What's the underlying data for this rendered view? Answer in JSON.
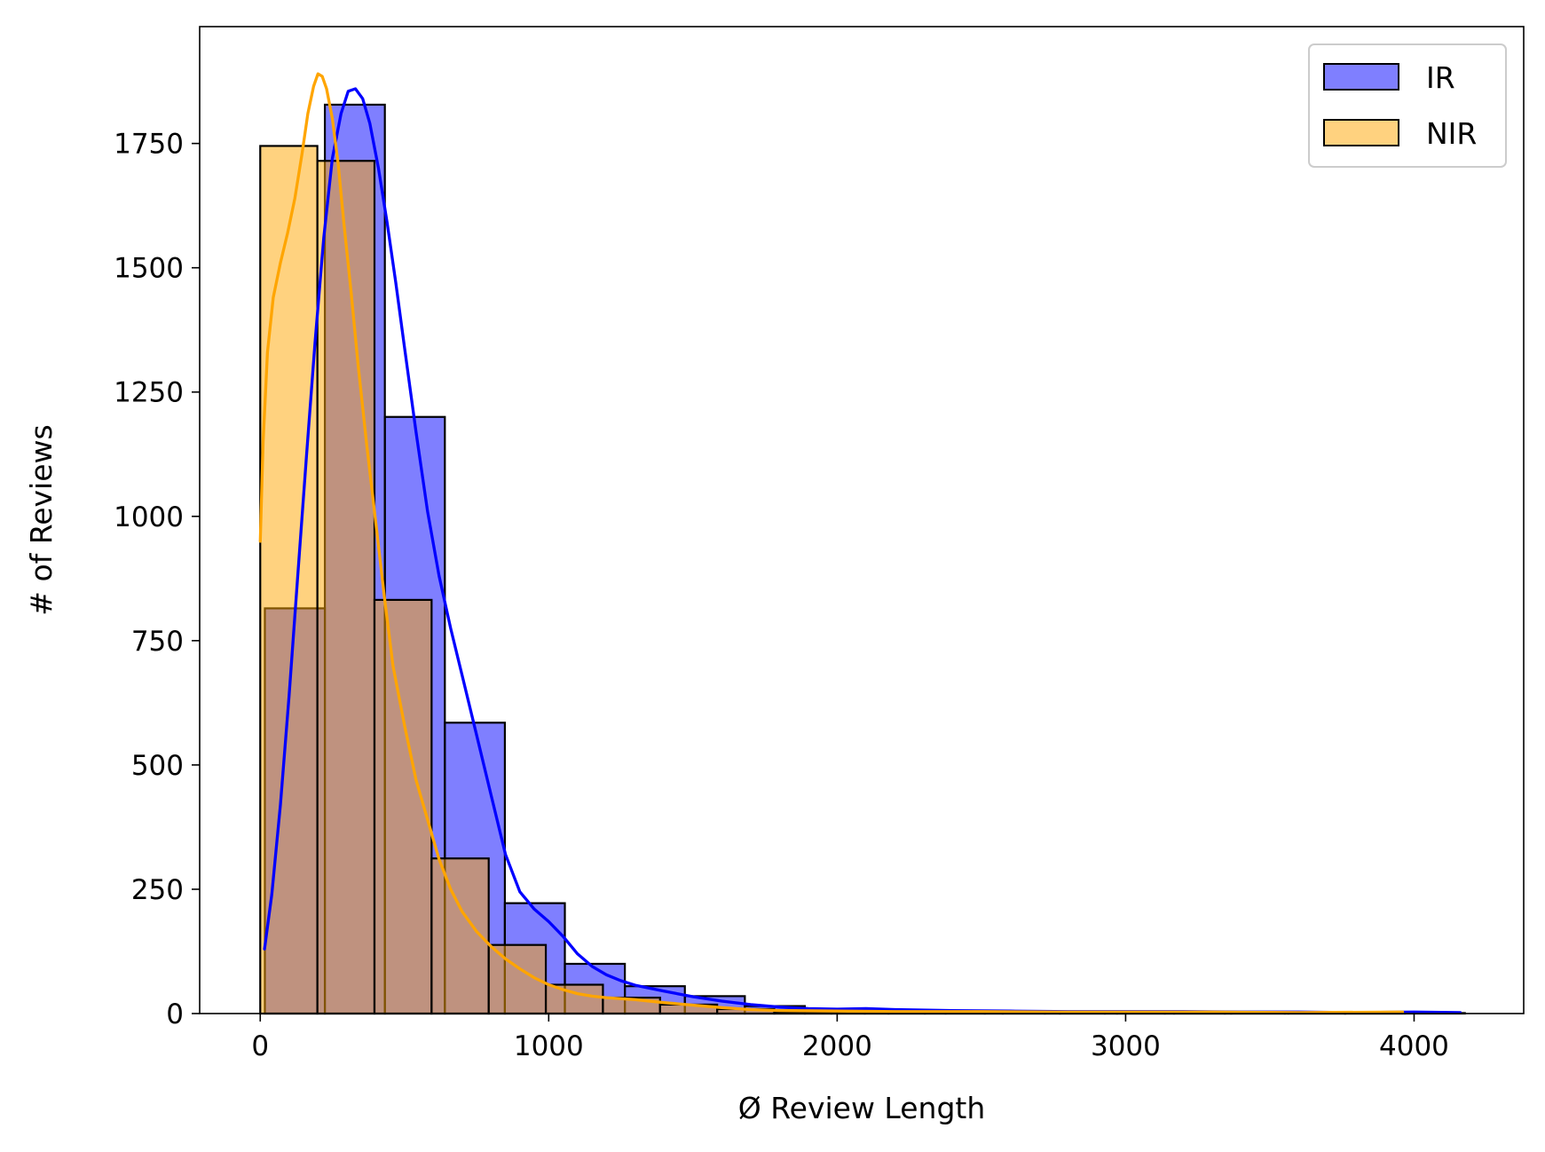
{
  "chart_data": {
    "type": "histogram",
    "title": "",
    "xlabel": "Ø Review Length",
    "ylabel": "# of Reviews",
    "xlim": [
      -210,
      4380
    ],
    "ylim": [
      0,
      1985
    ],
    "x_ticks": [
      0,
      1000,
      2000,
      3000,
      4000
    ],
    "y_ticks": [
      0,
      250,
      500,
      750,
      1000,
      1250,
      1500,
      1750
    ],
    "grid": false,
    "legend": {
      "position": "top-right"
    },
    "colors": {
      "IR_fill": "#0000ff",
      "IR_fill_opacity": 0.5,
      "IR_line": "#0000ff",
      "NIR_fill": "#ffa500",
      "NIR_fill_opacity": 0.5,
      "NIR_line": "#ffa500",
      "edge": "#000000"
    },
    "series": [
      {
        "name": "IR",
        "bins": [
          [
            16,
            224,
            815
          ],
          [
            224,
            432,
            1828
          ],
          [
            432,
            640,
            1200
          ],
          [
            640,
            848,
            585
          ],
          [
            848,
            1056,
            222
          ],
          [
            1056,
            1264,
            100
          ],
          [
            1264,
            1472,
            55
          ],
          [
            1472,
            1680,
            35
          ],
          [
            1680,
            1888,
            15
          ],
          [
            1888,
            2096,
            8
          ],
          [
            2096,
            2304,
            6
          ],
          [
            2304,
            2512,
            4
          ],
          [
            2512,
            2720,
            3
          ],
          [
            2720,
            2928,
            3
          ],
          [
            2928,
            3136,
            2
          ],
          [
            3136,
            3344,
            2
          ],
          [
            3344,
            3552,
            1
          ],
          [
            3552,
            3760,
            1
          ],
          [
            3760,
            3968,
            1
          ],
          [
            3968,
            4176,
            1
          ]
        ],
        "kde": [
          [
            15,
            130
          ],
          [
            40,
            240
          ],
          [
            70,
            420
          ],
          [
            100,
            640
          ],
          [
            130,
            880
          ],
          [
            160,
            1120
          ],
          [
            190,
            1350
          ],
          [
            220,
            1560
          ],
          [
            250,
            1720
          ],
          [
            280,
            1810
          ],
          [
            305,
            1855
          ],
          [
            330,
            1860
          ],
          [
            355,
            1840
          ],
          [
            380,
            1790
          ],
          [
            410,
            1700
          ],
          [
            440,
            1590
          ],
          [
            470,
            1470
          ],
          [
            500,
            1340
          ],
          [
            540,
            1170
          ],
          [
            580,
            1010
          ],
          [
            620,
            880
          ],
          [
            660,
            775
          ],
          [
            700,
            680
          ],
          [
            750,
            560
          ],
          [
            800,
            440
          ],
          [
            850,
            320
          ],
          [
            900,
            245
          ],
          [
            950,
            210
          ],
          [
            1000,
            185
          ],
          [
            1050,
            155
          ],
          [
            1100,
            120
          ],
          [
            1150,
            95
          ],
          [
            1200,
            78
          ],
          [
            1250,
            66
          ],
          [
            1300,
            57
          ],
          [
            1400,
            45
          ],
          [
            1500,
            34
          ],
          [
            1600,
            25
          ],
          [
            1700,
            18
          ],
          [
            1800,
            13
          ],
          [
            1900,
            10
          ],
          [
            2000,
            9
          ],
          [
            2100,
            10
          ],
          [
            2200,
            8
          ],
          [
            2400,
            6
          ],
          [
            2600,
            5
          ],
          [
            2800,
            4
          ],
          [
            3000,
            4
          ],
          [
            3200,
            4
          ],
          [
            3400,
            3
          ],
          [
            3600,
            3
          ],
          [
            3800,
            2
          ],
          [
            4000,
            3
          ],
          [
            4160,
            2
          ]
        ]
      },
      {
        "name": "NIR",
        "bins": [
          [
            0,
            198,
            1745
          ],
          [
            198,
            396,
            1715
          ],
          [
            396,
            594,
            832
          ],
          [
            594,
            792,
            312
          ],
          [
            792,
            990,
            138
          ],
          [
            990,
            1188,
            58
          ],
          [
            1188,
            1386,
            32
          ],
          [
            1386,
            1584,
            18
          ],
          [
            1584,
            1782,
            9
          ],
          [
            1782,
            1980,
            4
          ],
          [
            1980,
            2178,
            3
          ],
          [
            2178,
            2376,
            2
          ],
          [
            2376,
            2574,
            2
          ],
          [
            2574,
            2772,
            1
          ],
          [
            2772,
            2970,
            1
          ],
          [
            2970,
            3168,
            1
          ],
          [
            3168,
            3366,
            1
          ],
          [
            3366,
            3564,
            1
          ],
          [
            3564,
            3762,
            1
          ],
          [
            3762,
            3960,
            1
          ]
        ],
        "kde": [
          [
            0,
            950
          ],
          [
            10,
            1150
          ],
          [
            25,
            1330
          ],
          [
            45,
            1440
          ],
          [
            70,
            1510
          ],
          [
            95,
            1570
          ],
          [
            120,
            1640
          ],
          [
            145,
            1730
          ],
          [
            165,
            1810
          ],
          [
            185,
            1865
          ],
          [
            200,
            1890
          ],
          [
            215,
            1885
          ],
          [
            230,
            1860
          ],
          [
            250,
            1800
          ],
          [
            270,
            1710
          ],
          [
            290,
            1590
          ],
          [
            315,
            1450
          ],
          [
            340,
            1300
          ],
          [
            370,
            1140
          ],
          [
            400,
            990
          ],
          [
            430,
            840
          ],
          [
            460,
            700
          ],
          [
            500,
            580
          ],
          [
            540,
            470
          ],
          [
            580,
            390
          ],
          [
            620,
            310
          ],
          [
            660,
            250
          ],
          [
            700,
            205
          ],
          [
            750,
            165
          ],
          [
            800,
            135
          ],
          [
            850,
            110
          ],
          [
            900,
            90
          ],
          [
            950,
            72
          ],
          [
            1000,
            58
          ],
          [
            1050,
            48
          ],
          [
            1100,
            40
          ],
          [
            1150,
            35
          ],
          [
            1200,
            32
          ],
          [
            1300,
            28
          ],
          [
            1400,
            22
          ],
          [
            1500,
            17
          ],
          [
            1600,
            12
          ],
          [
            1700,
            8
          ],
          [
            1800,
            6
          ],
          [
            2000,
            5
          ],
          [
            2200,
            4
          ],
          [
            2500,
            4
          ],
          [
            2800,
            3
          ],
          [
            3000,
            3
          ],
          [
            3300,
            3
          ],
          [
            3600,
            2
          ],
          [
            3960,
            3
          ]
        ]
      }
    ]
  }
}
